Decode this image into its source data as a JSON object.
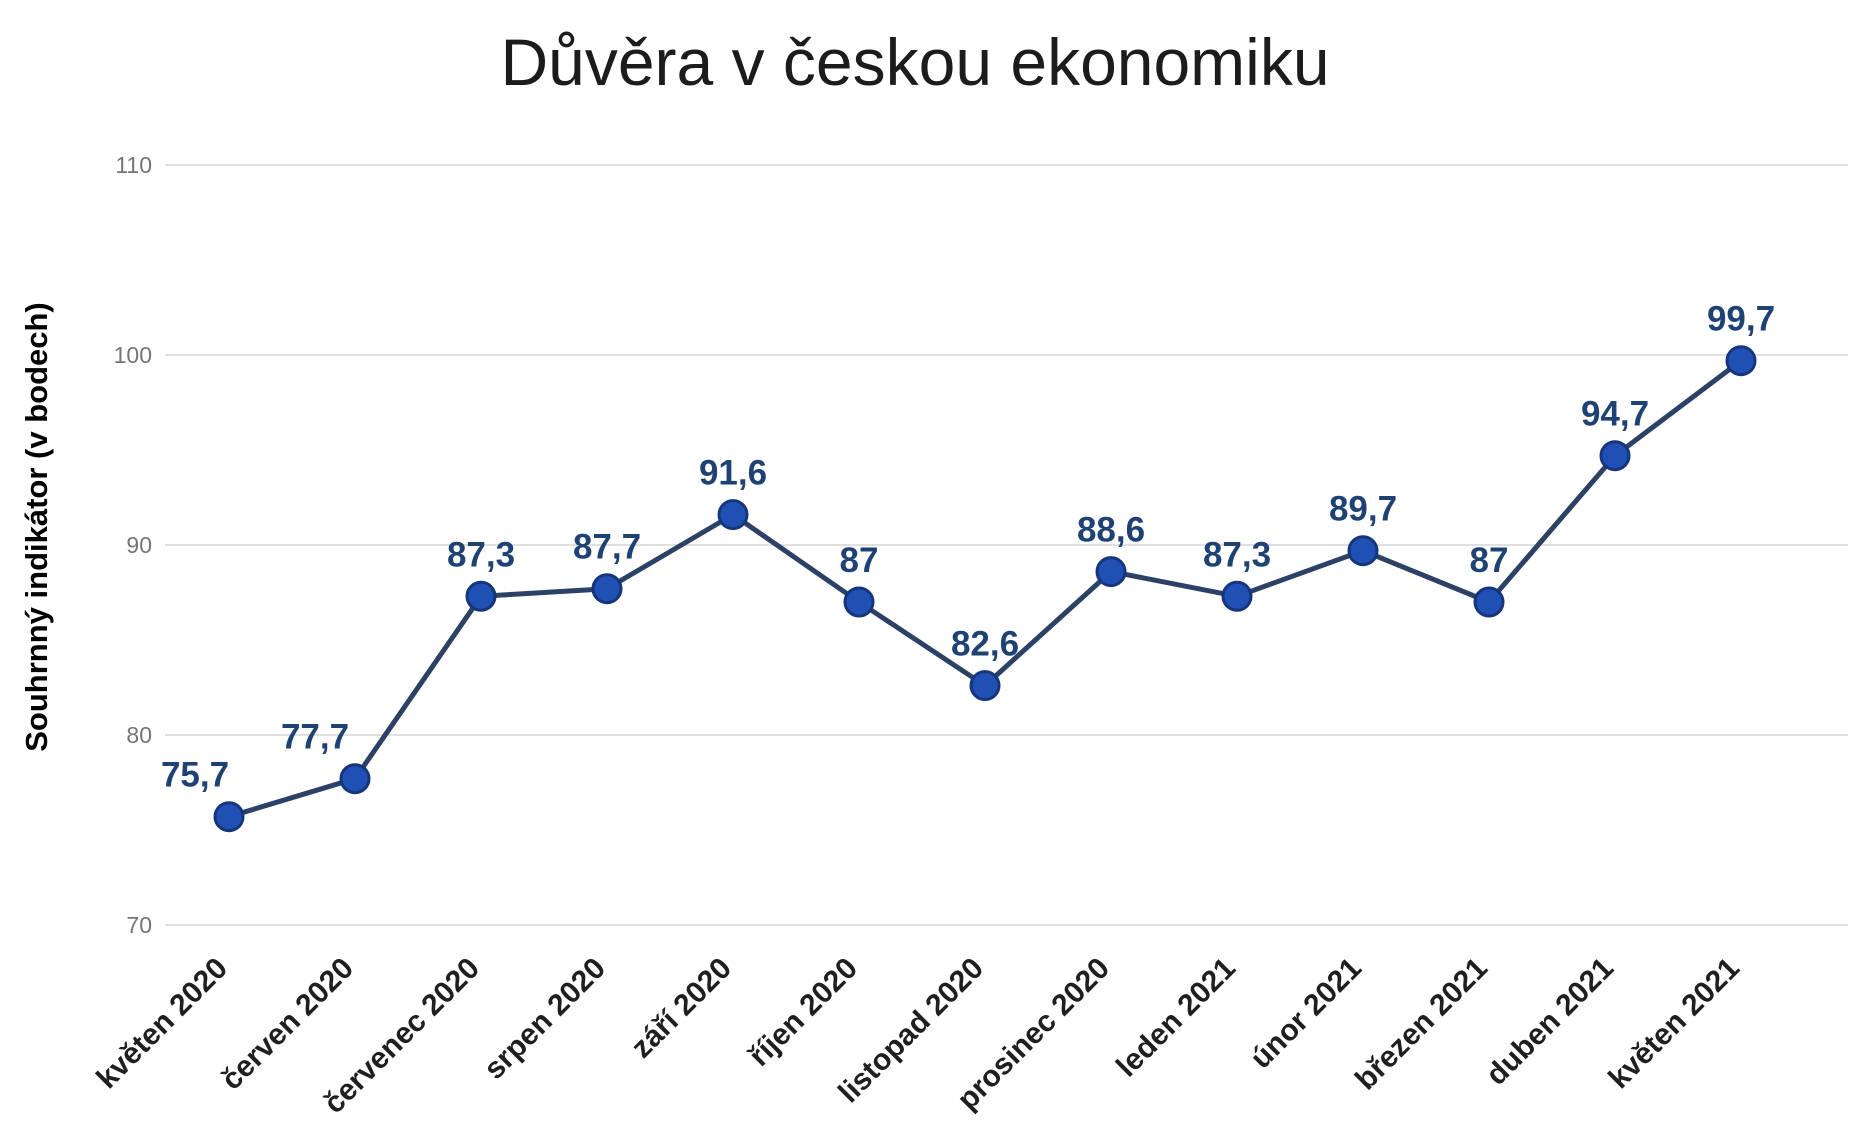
{
  "chart_data": {
    "type": "line",
    "title": "Důvěra v českou ekonomiku",
    "ylabel": "Souhrnný indikátor (v bodech)",
    "xlabel": "",
    "categories": [
      "květen 2020",
      "červen 2020",
      "červenec 2020",
      "srpen 2020",
      "září 2020",
      "říjen 2020",
      "listopad 2020",
      "prosinec 2020",
      "leden 2021",
      "únor 2021",
      "březen 2021",
      "duben 2021",
      "květen 2021"
    ],
    "series": [
      {
        "values": [
          75.7,
          77.7,
          87.3,
          87.7,
          91.6,
          87,
          82.6,
          88.6,
          87.3,
          89.7,
          87,
          94.7,
          99.7
        ],
        "point_labels": [
          "75,7",
          "77,7",
          "87,3",
          "87,7",
          "91,6",
          "87",
          "82,6",
          "88,6",
          "87,3",
          "89,7",
          "87",
          "94,7",
          "99,7"
        ]
      }
    ],
    "ylim": [
      70,
      110
    ],
    "yticks": [
      70,
      80,
      90,
      100,
      110
    ],
    "ytick_labels": [
      "70",
      "80",
      "90",
      "100",
      "110"
    ],
    "grid": "horizontal",
    "legend": "none",
    "colors": {
      "background": "#ffffff",
      "line": "#2b4166",
      "marker": "#2150b4",
      "marker_border": "#15357d",
      "value_label": "#1e4274",
      "gridline": "#e0e0e0",
      "ytick_label": "#757575",
      "xtick_label": "#1f1f1f",
      "title": "#1c1c1c",
      "axis_title": "#000000"
    }
  }
}
